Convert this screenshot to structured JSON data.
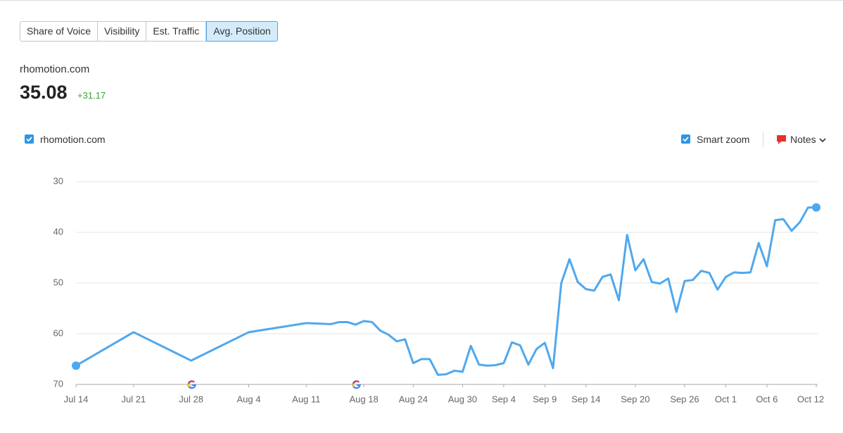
{
  "tabs": [
    "Share of Voice",
    "Visibility",
    "Est. Traffic",
    "Avg. Position"
  ],
  "active_tab": 3,
  "domain": "rhomotion.com",
  "metric_value": "35.08",
  "metric_change": "+31.17",
  "controls": {
    "smart_zoom": "Smart zoom",
    "notes": "Notes"
  },
  "chart_data": {
    "type": "line",
    "x": [
      "Jul 14",
      "Jul 21",
      "Jul 28",
      "Aug 4",
      "Aug 11",
      "Aug 14",
      "Aug 15",
      "Aug 16",
      "Aug 17",
      "Aug 18",
      "Aug 19",
      "Aug 20",
      "Aug 21",
      "Aug 22",
      "Aug 23",
      "Aug 24",
      "Aug 25",
      "Aug 26",
      "Aug 27",
      "Aug 28",
      "Aug 29",
      "Aug 30",
      "Aug 31",
      "Sep 1",
      "Sep 2",
      "Sep 3",
      "Sep 4",
      "Sep 5",
      "Sep 6",
      "Sep 7",
      "Sep 8",
      "Sep 9",
      "Sep 10",
      "Sep 11",
      "Sep 12",
      "Sep 13",
      "Sep 14",
      "Sep 15",
      "Sep 16",
      "Sep 17",
      "Sep 18",
      "Sep 19",
      "Sep 20",
      "Sep 21",
      "Sep 22",
      "Sep 23",
      "Sep 24",
      "Sep 25",
      "Sep 26",
      "Sep 27",
      "Sep 28",
      "Sep 29",
      "Sep 30",
      "Oct 1",
      "Oct 2",
      "Oct 3",
      "Oct 4",
      "Oct 5",
      "Oct 6",
      "Oct 7",
      "Oct 8",
      "Oct 9",
      "Oct 10",
      "Oct 11",
      "Oct 12"
    ],
    "series": [
      {
        "name": "rhomotion.com",
        "color": "#4fa8ee",
        "values": [
          66.3,
          59.7,
          65.3,
          59.7,
          57.9,
          58.1,
          57.7,
          57.7,
          58.2,
          57.5,
          57.7,
          59.4,
          60.2,
          61.5,
          61.1,
          65.8,
          65.0,
          65.0,
          68.1,
          68.0,
          67.3,
          67.5,
          62.4,
          66.1,
          66.3,
          66.2,
          65.8,
          61.7,
          62.3,
          66.1,
          63.0,
          61.8,
          66.8,
          50.0,
          45.3,
          49.8,
          51.2,
          51.5,
          48.8,
          48.3,
          53.4,
          40.5,
          47.5,
          45.3,
          49.8,
          50.1,
          49.1,
          55.7,
          49.6,
          49.4,
          47.6,
          48.0,
          51.3,
          48.8,
          47.9,
          48.0,
          47.9,
          42.1,
          46.7,
          37.6,
          37.4,
          39.7,
          38.0,
          35.1,
          35.08
        ]
      }
    ],
    "xlim": [
      "Jul 14",
      "Oct 12"
    ],
    "xticks": [
      "Jul 14",
      "Jul 21",
      "Jul 28",
      "Aug 4",
      "Aug 11",
      "Aug 18",
      "Aug 24",
      "Aug 30",
      "Sep 4",
      "Sep 9",
      "Sep 14",
      "Sep 20",
      "Sep 26",
      "Oct 1",
      "Oct 6",
      "Oct 12"
    ],
    "ylim": [
      70,
      30
    ],
    "yticks": [
      30,
      40,
      50,
      60,
      70
    ],
    "grid": true
  }
}
